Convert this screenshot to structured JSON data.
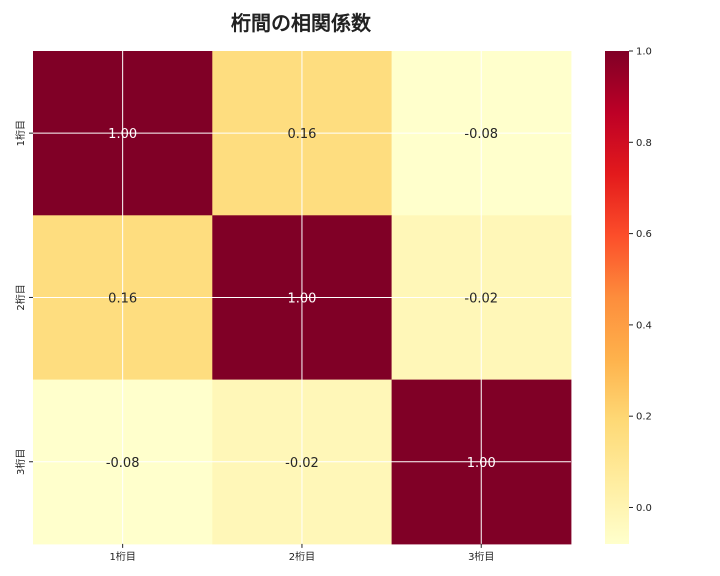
{
  "chart_data": {
    "type": "heatmap",
    "title": "桁間の相関係数",
    "x_categories": [
      "1桁目",
      "2桁目",
      "3桁目"
    ],
    "y_categories": [
      "1桁目",
      "2桁目",
      "3桁目"
    ],
    "values": [
      [
        1.0,
        0.16,
        -0.08
      ],
      [
        0.16,
        1.0,
        -0.02
      ],
      [
        -0.08,
        -0.02,
        1.0
      ]
    ],
    "value_labels": [
      [
        "1.00",
        "0.16",
        "-0.08"
      ],
      [
        "0.16",
        "1.00",
        "-0.02"
      ],
      [
        "-0.08",
        "-0.02",
        "1.00"
      ]
    ],
    "colormap": "YlOrRd",
    "vmin": -0.08,
    "vmax": 1.0,
    "colorbar_ticks": [
      "0.0",
      "0.2",
      "0.4",
      "0.6",
      "0.8",
      "1.0"
    ],
    "colorbar_tick_values": [
      0.0,
      0.2,
      0.4,
      0.6,
      0.8,
      1.0
    ],
    "grid": true,
    "colors": {
      "low": "#ffffcc",
      "mid": "#fd8d3c",
      "high": "#800026"
    }
  }
}
